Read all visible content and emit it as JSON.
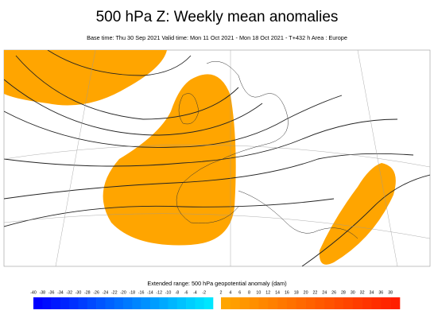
{
  "header": {
    "title": "500 hPa Z: Weekly mean anomalies",
    "subtitle": "Base time: Thu 30 Sep 2021 Valid time: Mon 11 Oct 2021 - Mon 18 Oct 2021 - T+432 h Area : Europe"
  },
  "legend": {
    "label": "Extended range: 500 hPa geopotential anomaly (dam)",
    "negative_ticks": [
      -40,
      -38,
      -36,
      -34,
      -32,
      -30,
      -28,
      -26,
      -24,
      -22,
      -20,
      -18,
      -16,
      -14,
      -12,
      -10,
      -8,
      -6,
      -4,
      -2
    ],
    "positive_ticks": [
      2,
      4,
      6,
      8,
      10,
      12,
      14,
      16,
      18,
      20,
      22,
      24,
      26,
      28,
      30,
      32,
      34,
      36,
      38
    ]
  }
}
